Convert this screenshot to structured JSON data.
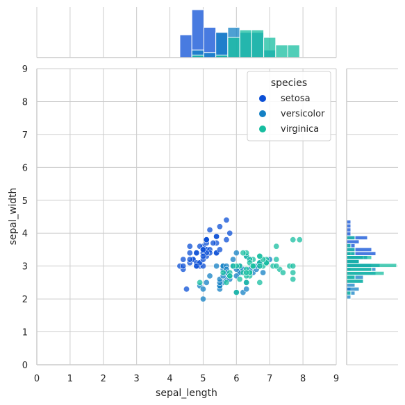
{
  "chart_data": {
    "type": "scatter",
    "title": "",
    "xlabel": "sepal_length",
    "ylabel": "sepal_width",
    "xlim": [
      0,
      9
    ],
    "ylim": [
      0,
      9
    ],
    "x_ticks": [
      "0",
      "1",
      "2",
      "3",
      "4",
      "5",
      "6",
      "7",
      "8",
      "9"
    ],
    "y_ticks": [
      "0",
      "1",
      "2",
      "3",
      "4",
      "5",
      "6",
      "7",
      "8",
      "9"
    ],
    "grid": true,
    "legend": {
      "title": "species",
      "placement": "top-right"
    },
    "series": [
      {
        "name": "setosa",
        "color": "#0b4fd6",
        "points": [
          [
            5.1,
            3.5
          ],
          [
            4.9,
            3.0
          ],
          [
            4.7,
            3.2
          ],
          [
            4.6,
            3.1
          ],
          [
            5.0,
            3.6
          ],
          [
            5.4,
            3.9
          ],
          [
            4.6,
            3.4
          ],
          [
            5.0,
            3.4
          ],
          [
            4.4,
            2.9
          ],
          [
            4.9,
            3.1
          ],
          [
            5.4,
            3.7
          ],
          [
            4.8,
            3.4
          ],
          [
            4.8,
            3.0
          ],
          [
            4.3,
            3.0
          ],
          [
            5.8,
            4.0
          ],
          [
            5.7,
            4.4
          ],
          [
            5.4,
            3.9
          ],
          [
            5.1,
            3.5
          ],
          [
            5.7,
            3.8
          ],
          [
            5.1,
            3.8
          ],
          [
            5.4,
            3.4
          ],
          [
            5.1,
            3.7
          ],
          [
            4.6,
            3.6
          ],
          [
            5.1,
            3.3
          ],
          [
            4.8,
            3.4
          ],
          [
            5.0,
            3.0
          ],
          [
            5.0,
            3.4
          ],
          [
            5.2,
            3.5
          ],
          [
            5.2,
            3.4
          ],
          [
            4.7,
            3.2
          ],
          [
            4.8,
            3.1
          ],
          [
            5.4,
            3.4
          ],
          [
            5.2,
            4.1
          ],
          [
            5.5,
            4.2
          ],
          [
            4.9,
            3.1
          ],
          [
            5.0,
            3.2
          ],
          [
            5.5,
            3.5
          ],
          [
            4.9,
            3.6
          ],
          [
            4.4,
            3.0
          ],
          [
            5.1,
            3.4
          ],
          [
            5.0,
            3.5
          ],
          [
            4.5,
            2.3
          ],
          [
            4.4,
            3.2
          ],
          [
            5.0,
            3.5
          ],
          [
            5.1,
            3.8
          ],
          [
            4.8,
            3.0
          ],
          [
            5.1,
            3.8
          ],
          [
            4.6,
            3.2
          ],
          [
            5.3,
            3.7
          ],
          [
            5.0,
            3.3
          ]
        ]
      },
      {
        "name": "versicolor",
        "color": "#1380c4",
        "points": [
          [
            7.0,
            3.2
          ],
          [
            6.4,
            3.2
          ],
          [
            6.9,
            3.1
          ],
          [
            5.5,
            2.3
          ],
          [
            6.5,
            2.8
          ],
          [
            5.7,
            2.8
          ],
          [
            6.3,
            3.3
          ],
          [
            4.9,
            2.4
          ],
          [
            6.6,
            2.9
          ],
          [
            5.2,
            2.7
          ],
          [
            5.0,
            2.0
          ],
          [
            5.9,
            3.0
          ],
          [
            6.0,
            2.2
          ],
          [
            6.1,
            2.9
          ],
          [
            5.6,
            2.9
          ],
          [
            6.7,
            3.1
          ],
          [
            5.6,
            3.0
          ],
          [
            5.8,
            2.7
          ],
          [
            6.2,
            2.2
          ],
          [
            5.6,
            2.5
          ],
          [
            5.9,
            3.2
          ],
          [
            6.1,
            2.8
          ],
          [
            6.3,
            2.5
          ],
          [
            6.1,
            2.8
          ],
          [
            6.4,
            2.9
          ],
          [
            6.6,
            3.0
          ],
          [
            6.8,
            2.8
          ],
          [
            6.7,
            3.0
          ],
          [
            6.0,
            2.9
          ],
          [
            5.7,
            2.6
          ],
          [
            5.5,
            2.4
          ],
          [
            5.5,
            2.4
          ],
          [
            5.8,
            2.7
          ],
          [
            6.0,
            2.7
          ],
          [
            5.4,
            3.0
          ],
          [
            6.0,
            3.4
          ],
          [
            6.7,
            3.1
          ],
          [
            6.3,
            2.3
          ],
          [
            5.6,
            3.0
          ],
          [
            5.5,
            2.5
          ],
          [
            5.5,
            2.6
          ],
          [
            6.1,
            3.0
          ],
          [
            5.8,
            2.6
          ],
          [
            5.0,
            2.3
          ],
          [
            5.6,
            2.7
          ],
          [
            5.7,
            3.0
          ],
          [
            5.7,
            2.9
          ],
          [
            6.2,
            2.9
          ],
          [
            5.1,
            2.5
          ],
          [
            5.7,
            2.8
          ]
        ]
      },
      {
        "name": "virginica",
        "color": "#17bda0",
        "points": [
          [
            6.3,
            3.3
          ],
          [
            5.8,
            2.7
          ],
          [
            7.1,
            3.0
          ],
          [
            6.3,
            2.9
          ],
          [
            6.5,
            3.0
          ],
          [
            7.6,
            3.0
          ],
          [
            4.9,
            2.5
          ],
          [
            7.3,
            2.9
          ],
          [
            6.7,
            2.5
          ],
          [
            7.2,
            3.6
          ],
          [
            6.5,
            3.2
          ],
          [
            6.4,
            2.7
          ],
          [
            6.8,
            3.0
          ],
          [
            5.7,
            2.5
          ],
          [
            5.8,
            2.8
          ],
          [
            6.4,
            3.2
          ],
          [
            6.5,
            3.0
          ],
          [
            7.7,
            3.8
          ],
          [
            7.7,
            2.6
          ],
          [
            6.0,
            2.2
          ],
          [
            6.9,
            3.2
          ],
          [
            5.6,
            2.8
          ],
          [
            7.7,
            2.8
          ],
          [
            6.3,
            2.7
          ],
          [
            6.7,
            3.3
          ],
          [
            7.2,
            3.2
          ],
          [
            6.2,
            2.8
          ],
          [
            6.1,
            3.0
          ],
          [
            6.4,
            2.8
          ],
          [
            7.2,
            3.0
          ],
          [
            7.4,
            2.8
          ],
          [
            7.9,
            3.8
          ],
          [
            6.4,
            2.8
          ],
          [
            6.3,
            2.8
          ],
          [
            6.1,
            2.6
          ],
          [
            7.7,
            3.0
          ],
          [
            6.3,
            3.4
          ],
          [
            6.4,
            3.1
          ],
          [
            6.0,
            3.0
          ],
          [
            6.9,
            3.1
          ],
          [
            6.7,
            3.1
          ],
          [
            6.9,
            3.1
          ],
          [
            5.8,
            2.7
          ],
          [
            6.8,
            3.2
          ],
          [
            6.7,
            3.3
          ],
          [
            6.7,
            3.0
          ],
          [
            6.3,
            2.5
          ],
          [
            6.5,
            3.0
          ],
          [
            6.2,
            3.4
          ],
          [
            5.9,
            3.0
          ]
        ]
      }
    ],
    "marginal_hist_x": {
      "bins": [
        [
          4.3,
          4.66
        ],
        [
          4.66,
          5.02
        ],
        [
          5.02,
          5.38
        ],
        [
          5.38,
          5.74
        ],
        [
          5.74,
          6.1
        ],
        [
          6.1,
          6.46
        ],
        [
          6.46,
          6.82
        ],
        [
          6.82,
          7.18
        ],
        [
          7.18,
          7.54
        ],
        [
          7.54,
          7.9
        ]
      ],
      "counts": {
        "setosa": [
          9,
          19,
          12,
          10,
          0,
          0,
          0,
          0,
          0,
          0
        ],
        "versicolor": [
          0,
          3,
          2,
          10,
          12,
          10,
          10,
          3,
          0,
          0
        ],
        "virginica": [
          0,
          1,
          0,
          1,
          8,
          11,
          11,
          8,
          5,
          5
        ]
      }
    },
    "marginal_hist_y": {
      "bins": [
        [
          2.0,
          2.12
        ],
        [
          2.12,
          2.24
        ],
        [
          2.24,
          2.36
        ],
        [
          2.36,
          2.48
        ],
        [
          2.48,
          2.6
        ],
        [
          2.6,
          2.72
        ],
        [
          2.72,
          2.84
        ],
        [
          2.84,
          2.96
        ],
        [
          2.96,
          3.08
        ],
        [
          3.08,
          3.2
        ],
        [
          3.2,
          3.32
        ],
        [
          3.32,
          3.44
        ],
        [
          3.44,
          3.56
        ],
        [
          3.56,
          3.68
        ],
        [
          3.68,
          3.8
        ],
        [
          3.8,
          3.92
        ],
        [
          3.92,
          4.04
        ],
        [
          4.04,
          4.16
        ],
        [
          4.16,
          4.28
        ],
        [
          4.28,
          4.4
        ]
      ],
      "counts": {
        "setosa": [
          0,
          0,
          1,
          0,
          0,
          0,
          0,
          1,
          6,
          3,
          5,
          7,
          6,
          2,
          3,
          5,
          1,
          1,
          1,
          1
        ],
        "versicolor": [
          1,
          2,
          3,
          2,
          4,
          4,
          7,
          7,
          8,
          3,
          4,
          1,
          0,
          0,
          0,
          0,
          0,
          0,
          0,
          0
        ],
        "virginica": [
          0,
          1,
          0,
          0,
          4,
          2,
          9,
          6,
          12,
          3,
          6,
          2,
          2,
          1,
          0,
          2,
          0,
          0,
          0,
          0
        ]
      }
    }
  }
}
